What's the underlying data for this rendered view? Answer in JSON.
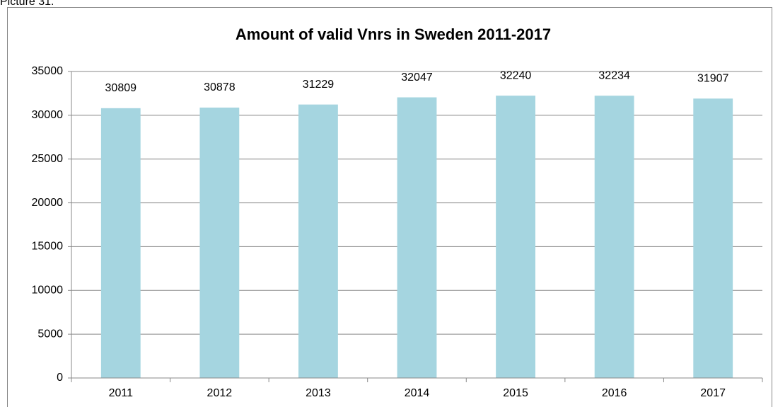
{
  "caption": "Picture 31.",
  "chart_data": {
    "type": "bar",
    "title": "Amount of valid Vnrs in Sweden 2011-2017",
    "categories": [
      "2011",
      "2012",
      "2013",
      "2014",
      "2015",
      "2016",
      "2017"
    ],
    "values": [
      30809,
      30878,
      31229,
      32047,
      32240,
      32234,
      31907
    ],
    "color": "#a5d5e0",
    "ylim": [
      0,
      35000
    ],
    "yticks": [
      0,
      5000,
      10000,
      15000,
      20000,
      25000,
      30000,
      35000
    ],
    "grid": true
  }
}
